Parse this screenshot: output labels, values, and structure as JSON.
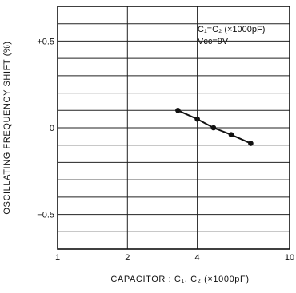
{
  "chart_data": {
    "type": "line",
    "xlabel": "CAPACITOR : C₁, C₂ (×1000pF)",
    "ylabel": "OSCILLATING FREQUENCY SHIFT (%)",
    "x_scale": "log",
    "xlim": [
      1,
      10
    ],
    "ylim": [
      -0.7,
      0.7
    ],
    "x_ticks": [
      {
        "value": 1,
        "label": "1"
      },
      {
        "value": 2,
        "label": "2"
      },
      {
        "value": 4,
        "label": "4"
      },
      {
        "value": 10,
        "label": "10"
      }
    ],
    "y_ticks": [
      {
        "value": 0.5,
        "label": "+0.5"
      },
      {
        "value": 0,
        "label": "0"
      },
      {
        "value": -0.5,
        "label": "−0.5"
      }
    ],
    "grid": true,
    "annotations": [
      "C₁=C₂ (×1000pF)",
      "Vcc=9V"
    ],
    "series": [
      {
        "x": [
          3.3,
          4.0,
          4.7,
          5.6,
          6.8
        ],
        "y": [
          0.1,
          0.05,
          0.0,
          -0.04,
          -0.09
        ]
      }
    ]
  }
}
